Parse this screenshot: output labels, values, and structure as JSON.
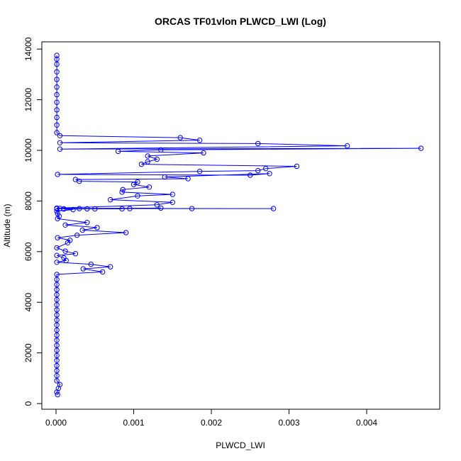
{
  "chart_data": {
    "type": "line",
    "title": "ORCAS TF01vlon PLWCD_LWI (Log)",
    "xlabel": "PLWCD_LWI",
    "ylabel": "Altitude (m)",
    "xlim": [
      0,
      0.0048
    ],
    "ylim": [
      0,
      14000
    ],
    "x_ticks": [
      0,
      0.001,
      0.002,
      0.003,
      0.004
    ],
    "x_tick_labels": [
      "0.000",
      "0.001",
      "0.002",
      "0.003",
      "0.004"
    ],
    "y_ticks": [
      0,
      2000,
      4000,
      6000,
      8000,
      10000,
      12000,
      14000
    ],
    "y_tick_labels": [
      "0",
      "2000",
      "4000",
      "6000",
      "8000",
      "10000",
      "12000",
      "14000"
    ],
    "grid": false,
    "legend": "none",
    "marker": "open-circle",
    "color": "#0000ff",
    "series": [
      {
        "points": [
          [
            2e-05,
            350
          ],
          [
            1e-05,
            450
          ],
          [
            3e-05,
            600
          ],
          [
            5e-05,
            750
          ],
          [
            1e-05,
            900
          ],
          [
            1e-05,
            1100
          ],
          [
            1e-05,
            1300
          ],
          [
            1e-05,
            1500
          ],
          [
            1e-05,
            1700
          ],
          [
            1e-05,
            1900
          ],
          [
            1e-05,
            2100
          ],
          [
            1e-05,
            2300
          ],
          [
            1e-05,
            2500
          ],
          [
            1e-05,
            2700
          ],
          [
            1e-05,
            2900
          ],
          [
            1e-05,
            3100
          ],
          [
            1e-05,
            3300
          ],
          [
            1e-05,
            3500
          ],
          [
            1e-05,
            3700
          ],
          [
            1e-05,
            3900
          ],
          [
            1e-05,
            4100
          ],
          [
            1e-05,
            4300
          ],
          [
            1e-05,
            4500
          ],
          [
            1e-05,
            4700
          ],
          [
            1e-05,
            4900
          ],
          [
            1e-05,
            5100
          ],
          [
            0.0006,
            5200
          ],
          [
            0.00035,
            5320
          ],
          [
            0.0007,
            5400
          ],
          [
            0.00045,
            5500
          ],
          [
            1e-05,
            5580
          ],
          [
            0.00013,
            5650
          ],
          [
            0.0001,
            5750
          ],
          [
            1e-05,
            5850
          ],
          [
            0.00025,
            5920
          ],
          [
            0.00012,
            6020
          ],
          [
            1e-05,
            6150
          ],
          [
            0.00015,
            6350
          ],
          [
            0.00018,
            6450
          ],
          [
            2e-05,
            6550
          ],
          [
            0.00027,
            6650
          ],
          [
            0.0009,
            6750
          ],
          [
            0.00034,
            6850
          ],
          [
            0.00053,
            6950
          ],
          [
            0.00012,
            7050
          ],
          [
            0.0004,
            7150
          ],
          [
            2e-05,
            7300
          ],
          [
            4e-05,
            7400
          ],
          [
            2e-05,
            7500
          ],
          [
            1e-05,
            7600
          ],
          [
            0.00022,
            7660
          ],
          [
            0.0001,
            7680
          ],
          [
            0.0004,
            7690
          ],
          [
            1e-05,
            7700
          ],
          [
            0.0028,
            7700
          ],
          [
            1e-05,
            7705
          ],
          [
            0.00175,
            7700
          ],
          [
            5e-05,
            7710
          ],
          [
            0.00085,
            7690
          ],
          [
            0.0003,
            7700
          ],
          [
            0.00135,
            7720
          ],
          [
            0.0001,
            7690
          ],
          [
            0.00095,
            7700
          ],
          [
            0.0005,
            7690
          ],
          [
            1e-05,
            7720
          ],
          [
            0.0013,
            7850
          ],
          [
            0.0015,
            7950
          ],
          [
            0.0007,
            8050
          ],
          [
            0.00105,
            8200
          ],
          [
            0.0015,
            8260
          ],
          [
            0.00085,
            8350
          ],
          [
            0.00086,
            8450
          ],
          [
            0.0012,
            8550
          ],
          [
            0.001,
            8650
          ],
          [
            0.00105,
            8750
          ],
          [
            0.0003,
            8780
          ],
          [
            0.00025,
            8850
          ],
          [
            0.0017,
            8880
          ],
          [
            0.0014,
            8950
          ],
          [
            0.00275,
            9080
          ],
          [
            0.0025,
            9020
          ],
          [
            2e-05,
            9050
          ],
          [
            0.00185,
            9170
          ],
          [
            0.0026,
            9200
          ],
          [
            0.0027,
            9280
          ],
          [
            0.0031,
            9370
          ],
          [
            0.0011,
            9450
          ],
          [
            0.00118,
            9550
          ],
          [
            0.0013,
            9650
          ],
          [
            0.00118,
            9780
          ],
          [
            0.0019,
            9900
          ],
          [
            0.0008,
            9960
          ],
          [
            0.00135,
            10020
          ],
          [
            0.0047,
            10080
          ],
          [
            5e-05,
            10050
          ],
          [
            0.00375,
            10180
          ],
          [
            0.0026,
            10270
          ],
          [
            5e-05,
            10300
          ],
          [
            0.00185,
            10400
          ],
          [
            0.0016,
            10500
          ],
          [
            5e-05,
            10580
          ],
          [
            1e-05,
            10700
          ],
          [
            1e-05,
            11000
          ],
          [
            1e-05,
            11300
          ],
          [
            1e-05,
            11600
          ],
          [
            1e-05,
            11900
          ],
          [
            1e-05,
            12200
          ],
          [
            1e-05,
            12500
          ],
          [
            1e-05,
            12800
          ],
          [
            1e-05,
            13100
          ],
          [
            1e-05,
            13400
          ],
          [
            1e-05,
            13600
          ],
          [
            1e-05,
            13750
          ]
        ]
      }
    ]
  }
}
